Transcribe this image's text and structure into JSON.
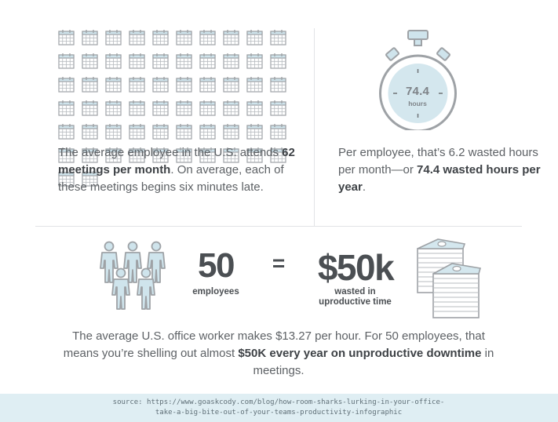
{
  "meetings": {
    "calendar_icon_count": 62,
    "icon": "calendar-icon",
    "text_before": "The average employee in the U.S. attends ",
    "text_bold": "62 meetings per month",
    "text_after": ". On average, each of these meetings begins six minutes late."
  },
  "hours": {
    "stopwatch_value": "74.4",
    "stopwatch_unit": "hours",
    "icon": "stopwatch-icon",
    "text_before": "Per employee, that’s 6.2 wasted hours per month—or ",
    "text_bold": "74.4 wasted hours per year",
    "text_after": "."
  },
  "equation": {
    "people_icon": "people-group-icon",
    "employee_count": "50",
    "employee_label": "employees",
    "equals_sign": "=",
    "money_value": "$50k",
    "money_label_line1": "wasted in",
    "money_label_line2": "uproductive time",
    "money_icon": "money-stacks-icon"
  },
  "summary": {
    "text_before": "The average U.S. office worker makes $13.27 per hour. For 50 employees, that means you’re shelling out almost ",
    "text_bold": "$50K every year on unproductive downtime",
    "text_after": " in meetings."
  },
  "source": {
    "line1": "source: https://www.goaskcody.com/blog/how-room-sharks-lurking-in-your-office-",
    "line2": "take-a-big-bite-out-of-your-teams-productivity-infographic"
  },
  "colors": {
    "icon_stroke": "#9ea2a6",
    "icon_fill": "#cfe4ec",
    "text": "#5d6165",
    "footer_bg": "#dfeef3"
  }
}
